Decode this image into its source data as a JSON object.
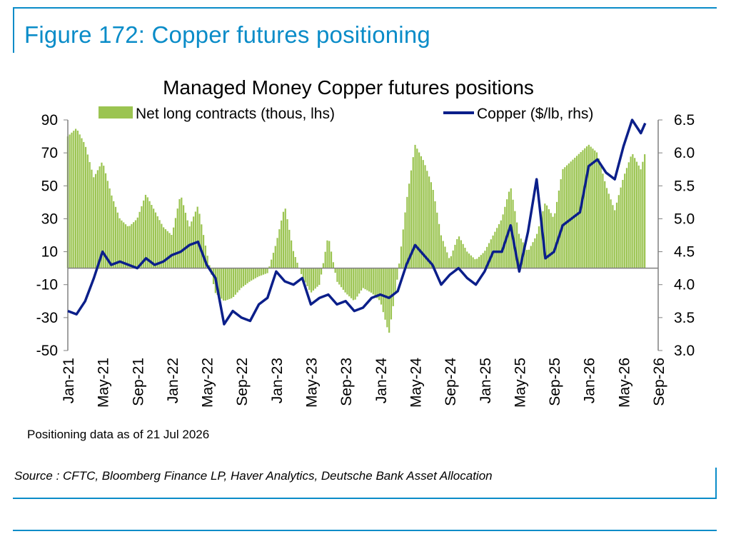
{
  "figure": {
    "title": "Figure 172: Copper futures positioning",
    "note": "Positioning data as of 21 Jul 2026",
    "source": "Source : CFTC, Bloomberg Finance LP, Haver Analytics, Deutsche Bank Asset Allocation"
  },
  "colors": {
    "frame": "#0a8cc8",
    "bars": "#9bc451",
    "line": "#0b1f8a",
    "axis": "#808080"
  },
  "chart_data": {
    "type": "bar+line",
    "title": "Managed Money Copper futures positions",
    "x_ticks": [
      "Jan-21",
      "May-21",
      "Sep-21",
      "Jan-22",
      "May-22",
      "Sep-22",
      "Jan-23",
      "May-23",
      "Sep-23",
      "Jan-24",
      "May-24",
      "Sep-24",
      "Jan-25",
      "May-25",
      "Sep-25",
      "Jan-26",
      "May-26",
      "Sep-26"
    ],
    "x_range": [
      "Jan-21",
      "Sep-26"
    ],
    "y_left": {
      "range": [
        -50,
        90
      ],
      "ticks": [
        90,
        70,
        50,
        30,
        10,
        -10,
        -30,
        -50
      ],
      "tick_labels": [
        "90",
        "70",
        "50",
        "30",
        "10",
        "-10",
        "-30",
        "-50"
      ]
    },
    "y_right": {
      "range": [
        3.0,
        6.5
      ],
      "ticks": [
        6.5,
        6.0,
        5.5,
        5.0,
        4.5,
        4.0,
        3.5,
        3.0
      ],
      "tick_labels": [
        "6.5",
        "6.0",
        "5.5",
        "5.0",
        "4.5",
        "4.0",
        "3.5",
        "3.0"
      ]
    },
    "legend": {
      "placement": "top"
    },
    "series": [
      {
        "name": "Net long contracts (thous, lhs)",
        "type": "bar",
        "axis": "left",
        "points": [
          [
            "Jan-21",
            80
          ],
          [
            "Feb-21",
            85
          ],
          [
            "Mar-21",
            75
          ],
          [
            "Apr-21",
            55
          ],
          [
            "May-21",
            65
          ],
          [
            "Jun-21",
            45
          ],
          [
            "Jul-21",
            30
          ],
          [
            "Aug-21",
            25
          ],
          [
            "Sep-21",
            30
          ],
          [
            "Oct-21",
            45
          ],
          [
            "Nov-21",
            35
          ],
          [
            "Dec-21",
            25
          ],
          [
            "Jan-22",
            20
          ],
          [
            "Feb-22",
            45
          ],
          [
            "Mar-22",
            25
          ],
          [
            "Apr-22",
            38
          ],
          [
            "May-22",
            10
          ],
          [
            "Jun-22",
            -15
          ],
          [
            "Jul-22",
            -20
          ],
          [
            "Aug-22",
            -18
          ],
          [
            "Sep-22",
            -12
          ],
          [
            "Oct-22",
            -8
          ],
          [
            "Nov-22",
            -5
          ],
          [
            "Dec-22",
            -3
          ],
          [
            "Jan-23",
            15
          ],
          [
            "Feb-23",
            38
          ],
          [
            "Mar-23",
            10
          ],
          [
            "Apr-23",
            -5
          ],
          [
            "May-23",
            -15
          ],
          [
            "Jun-23",
            -10
          ],
          [
            "Jul-23",
            20
          ],
          [
            "Aug-23",
            -8
          ],
          [
            "Sep-23",
            -15
          ],
          [
            "Oct-23",
            -20
          ],
          [
            "Nov-23",
            -12
          ],
          [
            "Dec-23",
            -15
          ],
          [
            "Jan-24",
            -20
          ],
          [
            "Feb-24",
            -40
          ],
          [
            "Mar-24",
            -5
          ],
          [
            "Apr-24",
            40
          ],
          [
            "May-24",
            75
          ],
          [
            "Jun-24",
            65
          ],
          [
            "Jul-24",
            50
          ],
          [
            "Aug-24",
            20
          ],
          [
            "Sep-24",
            5
          ],
          [
            "Oct-24",
            20
          ],
          [
            "Nov-24",
            10
          ],
          [
            "Dec-24",
            5
          ],
          [
            "Jan-25",
            10
          ],
          [
            "Feb-25",
            20
          ],
          [
            "Mar-25",
            30
          ],
          [
            "Apr-25",
            50
          ],
          [
            "May-25",
            20
          ],
          [
            "Jun-25",
            10
          ],
          [
            "Jul-25",
            20
          ],
          [
            "Aug-25",
            40
          ],
          [
            "Sep-25",
            30
          ],
          [
            "Oct-25",
            60
          ],
          [
            "Nov-25",
            65
          ],
          [
            "Dec-25",
            70
          ],
          [
            "Jan-26",
            75
          ],
          [
            "Feb-26",
            70
          ],
          [
            "Mar-26",
            50
          ],
          [
            "Apr-26",
            35
          ],
          [
            "May-26",
            55
          ],
          [
            "Jun-26",
            70
          ],
          [
            "Jul-26",
            60
          ],
          [
            "Jul-26b",
            70
          ]
        ]
      },
      {
        "name": "Copper ($/lb, rhs)",
        "type": "line",
        "axis": "right",
        "points": [
          [
            "Jan-21",
            3.6
          ],
          [
            "Feb-21",
            3.55
          ],
          [
            "Mar-21",
            3.75
          ],
          [
            "Apr-21",
            4.1
          ],
          [
            "May-21",
            4.5
          ],
          [
            "Jun-21",
            4.3
          ],
          [
            "Jul-21",
            4.35
          ],
          [
            "Aug-21",
            4.3
          ],
          [
            "Sep-21",
            4.25
          ],
          [
            "Oct-21",
            4.4
          ],
          [
            "Nov-21",
            4.3
          ],
          [
            "Dec-21",
            4.35
          ],
          [
            "Jan-22",
            4.45
          ],
          [
            "Feb-22",
            4.5
          ],
          [
            "Mar-22",
            4.6
          ],
          [
            "Apr-22",
            4.65
          ],
          [
            "May-22",
            4.3
          ],
          [
            "Jun-22",
            4.1
          ],
          [
            "Jul-22",
            3.4
          ],
          [
            "Aug-22",
            3.6
          ],
          [
            "Sep-22",
            3.5
          ],
          [
            "Oct-22",
            3.45
          ],
          [
            "Nov-22",
            3.7
          ],
          [
            "Dec-22",
            3.8
          ],
          [
            "Jan-23",
            4.2
          ],
          [
            "Feb-23",
            4.05
          ],
          [
            "Mar-23",
            4.0
          ],
          [
            "Apr-23",
            4.1
          ],
          [
            "May-23",
            3.7
          ],
          [
            "Jun-23",
            3.8
          ],
          [
            "Jul-23",
            3.85
          ],
          [
            "Aug-23",
            3.7
          ],
          [
            "Sep-23",
            3.75
          ],
          [
            "Oct-23",
            3.6
          ],
          [
            "Nov-23",
            3.65
          ],
          [
            "Dec-23",
            3.8
          ],
          [
            "Jan-24",
            3.85
          ],
          [
            "Feb-24",
            3.8
          ],
          [
            "Mar-24",
            3.9
          ],
          [
            "Apr-24",
            4.3
          ],
          [
            "May-24",
            4.6
          ],
          [
            "Jun-24",
            4.45
          ],
          [
            "Jul-24",
            4.3
          ],
          [
            "Aug-24",
            4.0
          ],
          [
            "Sep-24",
            4.15
          ],
          [
            "Oct-24",
            4.25
          ],
          [
            "Nov-24",
            4.1
          ],
          [
            "Dec-24",
            4.0
          ],
          [
            "Jan-25",
            4.2
          ],
          [
            "Feb-25",
            4.5
          ],
          [
            "Mar-25",
            4.5
          ],
          [
            "Apr-25",
            4.9
          ],
          [
            "May-25",
            4.2
          ],
          [
            "Jun-25",
            4.8
          ],
          [
            "Jul-25",
            5.6
          ],
          [
            "Aug-25",
            4.4
          ],
          [
            "Sep-25",
            4.5
          ],
          [
            "Oct-25",
            4.9
          ],
          [
            "Nov-25",
            5.0
          ],
          [
            "Dec-25",
            5.1
          ],
          [
            "Jan-26",
            5.8
          ],
          [
            "Feb-26",
            5.9
          ],
          [
            "Mar-26",
            5.7
          ],
          [
            "Apr-26",
            5.6
          ],
          [
            "May-26",
            6.1
          ],
          [
            "Jun-26",
            6.5
          ],
          [
            "Jul-26",
            6.3
          ],
          [
            "Jul-26b",
            6.45
          ]
        ]
      }
    ]
  }
}
